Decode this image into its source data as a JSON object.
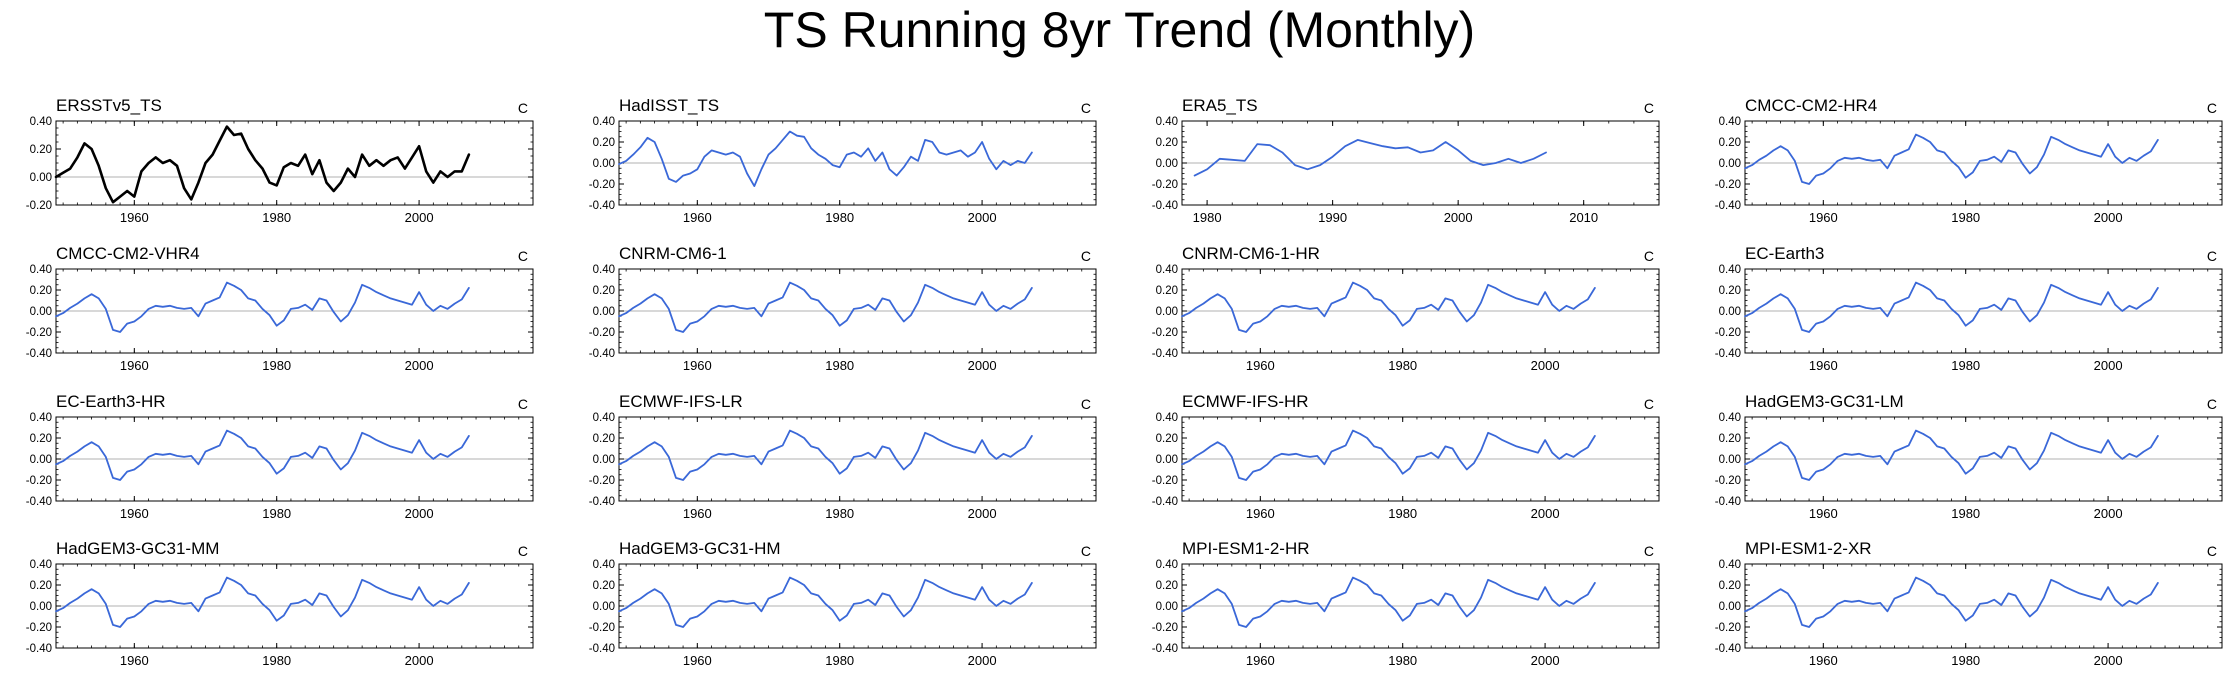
{
  "title": "TS Running 8yr Trend (Monthly)",
  "units": "C",
  "colors": {
    "obs": "#000000",
    "model": "#3a68d8",
    "zero_line": "#b0b0b0"
  },
  "model_curve": {
    "x": [
      1949,
      1950,
      1951,
      1952,
      1953,
      1954,
      1955,
      1956,
      1957,
      1958,
      1959,
      1960,
      1961,
      1962,
      1963,
      1964,
      1965,
      1966,
      1967,
      1968,
      1969,
      1970,
      1971,
      1972,
      1973,
      1974,
      1975,
      1976,
      1977,
      1978,
      1979,
      1980,
      1981,
      1982,
      1983,
      1984,
      1985,
      1986,
      1987,
      1988,
      1989,
      1990,
      1991,
      1992,
      1993,
      1994,
      1995,
      1996,
      1997,
      1998,
      1999,
      2000,
      2001,
      2002,
      2003,
      2004,
      2005,
      2006,
      2007
    ],
    "y": [
      -0.05,
      -0.02,
      0.03,
      0.07,
      0.12,
      0.16,
      0.12,
      0.02,
      -0.18,
      -0.2,
      -0.12,
      -0.1,
      -0.05,
      0.02,
      0.05,
      0.04,
      0.05,
      0.03,
      0.02,
      0.03,
      -0.05,
      0.07,
      0.1,
      0.13,
      0.27,
      0.24,
      0.2,
      0.12,
      0.1,
      0.02,
      -0.04,
      -0.14,
      -0.09,
      0.02,
      0.03,
      0.06,
      0.01,
      0.12,
      0.1,
      -0.01,
      -0.1,
      -0.04,
      0.08,
      0.25,
      0.22,
      0.18,
      0.15,
      0.12,
      0.1,
      0.08,
      0.06,
      0.18,
      0.06,
      0.0,
      0.05,
      0.02,
      0.07,
      0.11,
      0.22
    ]
  },
  "chart_data": [
    {
      "type": "line",
      "title": "ERSSTv5_TS",
      "units": "C",
      "xlim": [
        1949,
        2016
      ],
      "ylim": [
        -0.2,
        0.4
      ],
      "xticks": [
        1960,
        1980,
        2000
      ],
      "yticks": [
        "0.40",
        "0.20",
        "0.00",
        "-0.20"
      ],
      "series": [
        {
          "x": [
            1949,
            1950,
            1951,
            1952,
            1953,
            1954,
            1955,
            1956,
            1957,
            1958,
            1959,
            1960,
            1961,
            1962,
            1963,
            1964,
            1965,
            1966,
            1967,
            1968,
            1969,
            1970,
            1971,
            1972,
            1973,
            1974,
            1975,
            1976,
            1977,
            1978,
            1979,
            1980,
            1981,
            1982,
            1983,
            1984,
            1985,
            1986,
            1987,
            1988,
            1989,
            1990,
            1991,
            1992,
            1993,
            1994,
            1995,
            1996,
            1997,
            1998,
            1999,
            2000,
            2001,
            2002,
            2003,
            2004,
            2005,
            2006,
            2007
          ],
          "y": [
            0.0,
            0.03,
            0.06,
            0.14,
            0.24,
            0.2,
            0.08,
            -0.08,
            -0.18,
            -0.14,
            -0.1,
            -0.14,
            0.04,
            0.1,
            0.14,
            0.1,
            0.12,
            0.08,
            -0.08,
            -0.16,
            -0.04,
            0.1,
            0.16,
            0.26,
            0.36,
            0.3,
            0.31,
            0.2,
            0.12,
            0.06,
            -0.04,
            -0.06,
            0.07,
            0.1,
            0.08,
            0.16,
            0.02,
            0.12,
            -0.04,
            -0.1,
            -0.04,
            0.06,
            0.0,
            0.16,
            0.08,
            0.12,
            0.08,
            0.12,
            0.14,
            0.06,
            0.14,
            0.22,
            0.04,
            -0.04,
            0.04,
            0.0,
            0.04,
            0.04,
            0.16
          ]
        }
      ]
    },
    {
      "type": "line",
      "title": "HadISST_TS",
      "units": "C",
      "xlim": [
        1949,
        2016
      ],
      "ylim": [
        -0.4,
        0.4
      ],
      "xticks": [
        1960,
        1980,
        2000
      ],
      "yticks": [
        "0.40",
        "0.20",
        "0.00",
        "-0.20",
        "-0.40"
      ],
      "series": [
        {
          "x": [
            1949,
            1950,
            1951,
            1952,
            1953,
            1954,
            1955,
            1956,
            1957,
            1958,
            1959,
            1960,
            1961,
            1962,
            1963,
            1964,
            1965,
            1966,
            1967,
            1968,
            1969,
            1970,
            1971,
            1972,
            1973,
            1974,
            1975,
            1976,
            1977,
            1978,
            1979,
            1980,
            1981,
            1982,
            1983,
            1984,
            1985,
            1986,
            1987,
            1988,
            1989,
            1990,
            1991,
            1992,
            1993,
            1994,
            1995,
            1996,
            1997,
            1998,
            1999,
            2000,
            2001,
            2002,
            2003,
            2004,
            2005,
            2006,
            2007
          ],
          "y": [
            -0.01,
            0.02,
            0.08,
            0.15,
            0.24,
            0.2,
            0.04,
            -0.15,
            -0.18,
            -0.12,
            -0.1,
            -0.06,
            0.06,
            0.12,
            0.1,
            0.08,
            0.1,
            0.06,
            -0.1,
            -0.22,
            -0.06,
            0.08,
            0.14,
            0.22,
            0.3,
            0.26,
            0.25,
            0.14,
            0.08,
            0.04,
            -0.02,
            -0.04,
            0.08,
            0.1,
            0.06,
            0.14,
            0.02,
            0.1,
            -0.06,
            -0.12,
            -0.04,
            0.06,
            0.02,
            0.22,
            0.2,
            0.1,
            0.08,
            0.1,
            0.12,
            0.06,
            0.1,
            0.2,
            0.04,
            -0.06,
            0.02,
            -0.02,
            0.02,
            0.0,
            0.1
          ]
        }
      ]
    },
    {
      "type": "line",
      "title": "ERA5_TS",
      "units": "C",
      "xlim": [
        1978,
        2016
      ],
      "ylim": [
        -0.4,
        0.4
      ],
      "xticks": [
        1980,
        1990,
        2000,
        2010
      ],
      "yticks": [
        "0.40",
        "0.20",
        "0.00",
        "-0.20",
        "-0.40"
      ],
      "series": [
        {
          "x": [
            1979,
            1980,
            1981,
            1982,
            1983,
            1984,
            1985,
            1986,
            1987,
            1988,
            1989,
            1990,
            1991,
            1992,
            1993,
            1994,
            1995,
            1996,
            1997,
            1998,
            1999,
            2000,
            2001,
            2002,
            2003,
            2004,
            2005,
            2006,
            2007
          ],
          "y": [
            -0.12,
            -0.06,
            0.04,
            0.03,
            0.02,
            0.18,
            0.17,
            0.1,
            -0.02,
            -0.06,
            -0.02,
            0.06,
            0.16,
            0.22,
            0.19,
            0.16,
            0.14,
            0.15,
            0.1,
            0.12,
            0.2,
            0.12,
            0.02,
            -0.02,
            0.0,
            0.04,
            0.0,
            0.04,
            0.1
          ]
        }
      ]
    },
    {
      "type": "line",
      "title": "CMCC-CM2-HR4",
      "units": "C",
      "xlim": [
        1949,
        2016
      ],
      "ylim": [
        -0.4,
        0.4
      ],
      "xticks": [
        1960,
        1980,
        2000
      ],
      "yticks": [
        "0.40",
        "0.20",
        "0.00",
        "-0.20",
        "-0.40"
      ],
      "series": [
        {
          "ref": "model_curve"
        }
      ]
    },
    {
      "type": "line",
      "title": "CMCC-CM2-VHR4",
      "units": "C",
      "xlim": [
        1949,
        2016
      ],
      "ylim": [
        -0.4,
        0.4
      ],
      "xticks": [
        1960,
        1980,
        2000
      ],
      "yticks": [
        "0.40",
        "0.20",
        "0.00",
        "-0.20",
        "-0.40"
      ],
      "series": [
        {
          "ref": "model_curve"
        }
      ]
    },
    {
      "type": "line",
      "title": "CNRM-CM6-1",
      "units": "C",
      "xlim": [
        1949,
        2016
      ],
      "ylim": [
        -0.4,
        0.4
      ],
      "xticks": [
        1960,
        1980,
        2000
      ],
      "yticks": [
        "0.40",
        "0.20",
        "0.00",
        "-0.20",
        "-0.40"
      ],
      "series": [
        {
          "ref": "model_curve"
        }
      ]
    },
    {
      "type": "line",
      "title": "CNRM-CM6-1-HR",
      "units": "C",
      "xlim": [
        1949,
        2016
      ],
      "ylim": [
        -0.4,
        0.4
      ],
      "xticks": [
        1960,
        1980,
        2000
      ],
      "yticks": [
        "0.40",
        "0.20",
        "0.00",
        "-0.20",
        "-0.40"
      ],
      "series": [
        {
          "ref": "model_curve"
        }
      ]
    },
    {
      "type": "line",
      "title": "EC-Earth3",
      "units": "C",
      "xlim": [
        1949,
        2016
      ],
      "ylim": [
        -0.4,
        0.4
      ],
      "xticks": [
        1960,
        1980,
        2000
      ],
      "yticks": [
        "0.40",
        "0.20",
        "0.00",
        "-0.20",
        "-0.40"
      ],
      "series": [
        {
          "ref": "model_curve"
        }
      ]
    },
    {
      "type": "line",
      "title": "EC-Earth3-HR",
      "units": "C",
      "xlim": [
        1949,
        2016
      ],
      "ylim": [
        -0.4,
        0.4
      ],
      "xticks": [
        1960,
        1980,
        2000
      ],
      "yticks": [
        "0.40",
        "0.20",
        "0.00",
        "-0.20",
        "-0.40"
      ],
      "series": [
        {
          "ref": "model_curve"
        }
      ]
    },
    {
      "type": "line",
      "title": "ECMWF-IFS-LR",
      "units": "C",
      "xlim": [
        1949,
        2016
      ],
      "ylim": [
        -0.4,
        0.4
      ],
      "xticks": [
        1960,
        1980,
        2000
      ],
      "yticks": [
        "0.40",
        "0.20",
        "0.00",
        "-0.20",
        "-0.40"
      ],
      "series": [
        {
          "ref": "model_curve"
        }
      ]
    },
    {
      "type": "line",
      "title": "ECMWF-IFS-HR",
      "units": "C",
      "xlim": [
        1949,
        2016
      ],
      "ylim": [
        -0.4,
        0.4
      ],
      "xticks": [
        1960,
        1980,
        2000
      ],
      "yticks": [
        "0.40",
        "0.20",
        "0.00",
        "-0.20",
        "-0.40"
      ],
      "series": [
        {
          "ref": "model_curve"
        }
      ]
    },
    {
      "type": "line",
      "title": "HadGEM3-GC31-LM",
      "units": "C",
      "xlim": [
        1949,
        2016
      ],
      "ylim": [
        -0.4,
        0.4
      ],
      "xticks": [
        1960,
        1980,
        2000
      ],
      "yticks": [
        "0.40",
        "0.20",
        "0.00",
        "-0.20",
        "-0.40"
      ],
      "series": [
        {
          "ref": "model_curve"
        }
      ]
    },
    {
      "type": "line",
      "title": "HadGEM3-GC31-MM",
      "units": "C",
      "xlim": [
        1949,
        2016
      ],
      "ylim": [
        -0.4,
        0.4
      ],
      "xticks": [
        1960,
        1980,
        2000
      ],
      "yticks": [
        "0.40",
        "0.20",
        "0.00",
        "-0.20",
        "-0.40"
      ],
      "series": [
        {
          "ref": "model_curve"
        }
      ]
    },
    {
      "type": "line",
      "title": "HadGEM3-GC31-HM",
      "units": "C",
      "xlim": [
        1949,
        2016
      ],
      "ylim": [
        -0.4,
        0.4
      ],
      "xticks": [
        1960,
        1980,
        2000
      ],
      "yticks": [
        "0.40",
        "0.20",
        "0.00",
        "-0.20",
        "-0.40"
      ],
      "series": [
        {
          "ref": "model_curve"
        }
      ]
    },
    {
      "type": "line",
      "title": "MPI-ESM1-2-HR",
      "units": "C",
      "xlim": [
        1949,
        2016
      ],
      "ylim": [
        -0.4,
        0.4
      ],
      "xticks": [
        1960,
        1980,
        2000
      ],
      "yticks": [
        "0.40",
        "0.20",
        "0.00",
        "-0.20",
        "-0.40"
      ],
      "series": [
        {
          "ref": "model_curve"
        }
      ]
    },
    {
      "type": "line",
      "title": "MPI-ESM1-2-XR",
      "units": "C",
      "xlim": [
        1949,
        2016
      ],
      "ylim": [
        -0.4,
        0.4
      ],
      "xticks": [
        1960,
        1980,
        2000
      ],
      "yticks": [
        "0.40",
        "0.20",
        "0.00",
        "-0.20",
        "-0.40"
      ],
      "series": [
        {
          "ref": "model_curve"
        }
      ]
    }
  ]
}
